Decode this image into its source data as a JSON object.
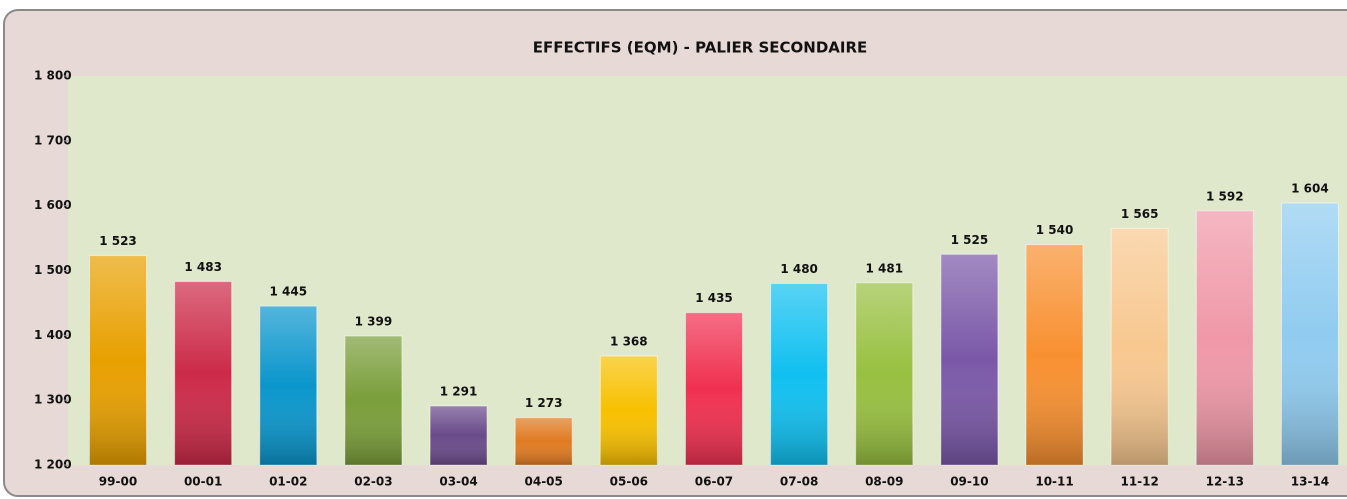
{
  "chart_data": {
    "type": "bar",
    "title": "EFFECTIFS (EQM) - PALIER SECONDAIRE",
    "categories": [
      "99-00",
      "00-01",
      "01-02",
      "02-03",
      "03-04",
      "04-05",
      "05-06",
      "06-07",
      "07-08",
      "08-09",
      "09-10",
      "10-11",
      "11-12",
      "12-13",
      "13-14"
    ],
    "values": [
      1523,
      1483,
      1445,
      1399,
      1291,
      1273,
      1368,
      1435,
      1480,
      1481,
      1525,
      1540,
      1565,
      1592,
      1604
    ],
    "value_labels": [
      "1 523",
      "1 483",
      "1 445",
      "1 399",
      "1 291",
      "1 273",
      "1 368",
      "1 435",
      "1 480",
      "1 481",
      "1 525",
      "1 540",
      "1 565",
      "1 592",
      "1 604"
    ],
    "colors": [
      "#e8a000",
      "#cc2a48",
      "#0a96cc",
      "#7a9e3a",
      "#6a4a8a",
      "#e07a20",
      "#f8c000",
      "#f03050",
      "#10c0f0",
      "#98c040",
      "#7a58a8",
      "#f89030",
      "#f8c890",
      "#f098a8",
      "#90ccf0"
    ],
    "ylim": [
      1200,
      1800
    ],
    "yticks": [
      {
        "value": 1200,
        "label": "1 200"
      },
      {
        "value": 1300,
        "label": "1 300"
      },
      {
        "value": 1400,
        "label": "1 400"
      },
      {
        "value": 1500,
        "label": "1 500"
      },
      {
        "value": 1600,
        "label": "1 600"
      },
      {
        "value": 1700,
        "label": "1 700"
      },
      {
        "value": 1800,
        "label": "1 800"
      }
    ],
    "grid": false
  }
}
